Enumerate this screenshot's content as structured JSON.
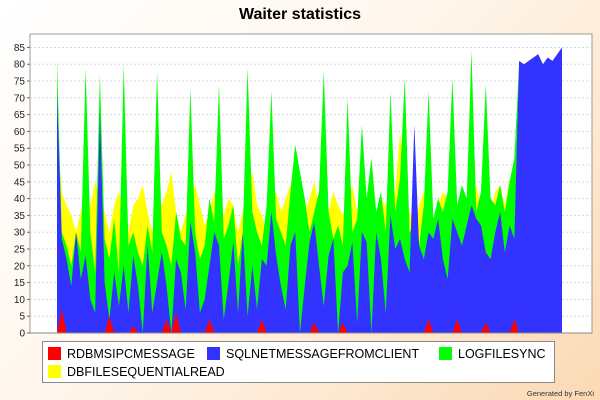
{
  "chart_data": {
    "type": "area",
    "title": "Waiter statistics",
    "xlabel": "",
    "ylabel": "",
    "ylim": [
      0,
      89
    ],
    "yticks": [
      0,
      5,
      10,
      15,
      20,
      25,
      30,
      35,
      40,
      45,
      50,
      55,
      60,
      65,
      70,
      75,
      80,
      85
    ],
    "grid": true,
    "legend_position": "bottom",
    "series": [
      {
        "name": "DBFILESEQUENTIALREAD",
        "color": "#ffff00",
        "values": [
          60,
          42,
          38,
          35,
          30,
          36,
          42,
          38,
          45,
          40,
          36,
          30,
          38,
          42,
          35,
          30,
          38,
          40,
          44,
          36,
          30,
          35,
          38,
          42,
          48,
          36,
          30,
          35,
          40,
          44,
          38,
          32,
          36,
          42,
          38,
          35,
          40,
          38,
          30,
          36,
          42,
          48,
          38,
          35,
          30,
          38,
          42,
          36,
          40,
          44,
          38,
          32,
          36,
          40,
          45,
          38,
          30,
          36,
          42,
          38,
          35,
          40,
          44,
          36,
          30,
          38,
          42,
          36,
          40,
          38,
          35,
          42,
          60,
          44,
          36,
          32,
          38,
          42,
          36,
          30,
          38,
          42,
          40,
          35,
          38,
          42,
          36,
          40,
          44,
          38,
          40,
          36,
          42,
          44,
          38,
          46,
          40,
          80,
          80,
          80,
          80,
          80,
          80,
          80,
          80,
          80,
          80
        ]
      },
      {
        "name": "LOGFILESYNC",
        "color": "#00ff00",
        "values": [
          81,
          30,
          26,
          20,
          30,
          24,
          79,
          30,
          18,
          77,
          28,
          22,
          34,
          18,
          80,
          26,
          30,
          24,
          20,
          32,
          24,
          78,
          30,
          26,
          20,
          36,
          28,
          26,
          73,
          30,
          22,
          26,
          40,
          33,
          74,
          28,
          32,
          38,
          20,
          30,
          79,
          36,
          30,
          26,
          38,
          72,
          34,
          30,
          26,
          42,
          56,
          48,
          40,
          30,
          36,
          42,
          78,
          36,
          28,
          32,
          26,
          70,
          30,
          34,
          62,
          40,
          52,
          36,
          42,
          30,
          72,
          36,
          46,
          76,
          30,
          32,
          26,
          38,
          72,
          34,
          40,
          36,
          42,
          76,
          38,
          44,
          40,
          84,
          36,
          42,
          74,
          40,
          38,
          44,
          36,
          45,
          52,
          80,
          80,
          80,
          80,
          80,
          80,
          80,
          80,
          80,
          80
        ]
      },
      {
        "name": "SQLNETMESSAGEFROMCLIENT",
        "color": "#3333ff",
        "values": [
          72,
          28,
          22,
          14,
          30,
          16,
          23,
          10,
          6,
          66,
          15,
          4,
          18,
          8,
          20,
          6,
          23,
          14,
          0,
          26,
          6,
          15,
          24,
          14,
          0,
          22,
          18,
          7,
          33,
          24,
          6,
          10,
          20,
          30,
          26,
          4,
          15,
          27,
          6,
          30,
          5,
          20,
          7,
          22,
          20,
          36,
          23,
          14,
          7,
          26,
          30,
          0,
          14,
          27,
          33,
          20,
          8,
          23,
          28,
          0,
          18,
          20,
          27,
          3,
          30,
          27,
          0,
          30,
          22,
          6,
          35,
          25,
          28,
          22,
          18,
          62,
          26,
          22,
          30,
          28,
          34,
          22,
          16,
          34,
          30,
          26,
          32,
          38,
          34,
          32,
          24,
          22,
          30,
          36,
          24,
          32,
          28,
          81,
          80,
          81,
          82,
          83,
          80,
          82,
          81,
          83,
          85
        ]
      },
      {
        "name": "RDBMSIPCMESSAGE",
        "color": "#ff0000",
        "values": [
          0,
          7,
          0,
          0,
          0,
          0,
          0,
          0,
          0,
          0,
          0,
          5,
          0,
          0,
          0,
          0,
          2,
          0,
          0,
          0,
          0,
          0,
          0,
          4,
          0,
          6,
          0,
          0,
          0,
          0,
          0,
          0,
          4,
          0,
          0,
          0,
          0,
          0,
          0,
          0,
          0,
          0,
          0,
          4,
          0,
          0,
          0,
          0,
          0,
          0,
          0,
          0,
          0,
          0,
          3,
          0,
          0,
          0,
          0,
          0,
          3,
          0,
          0,
          0,
          0,
          0,
          0,
          0,
          0,
          0,
          0,
          0,
          0,
          0,
          0,
          0,
          0,
          0,
          4,
          0,
          0,
          0,
          0,
          0,
          4,
          0,
          0,
          0,
          0,
          0,
          3,
          0,
          0,
          0,
          0,
          0,
          4,
          0,
          0,
          0,
          0,
          0,
          0,
          0,
          0,
          0,
          0
        ]
      }
    ],
    "legend": [
      {
        "name": "RDBMSIPCMESSAGE",
        "color": "#ff0000"
      },
      {
        "name": "SQLNETMESSAGEFROMCLIENT",
        "color": "#3333ff"
      },
      {
        "name": "LOGFILESYNC",
        "color": "#00ff00"
      },
      {
        "name": "DBFILESEQUENTIALREAD",
        "color": "#ffff00"
      }
    ]
  },
  "footer": {
    "credit": "Generated by FenXi"
  }
}
